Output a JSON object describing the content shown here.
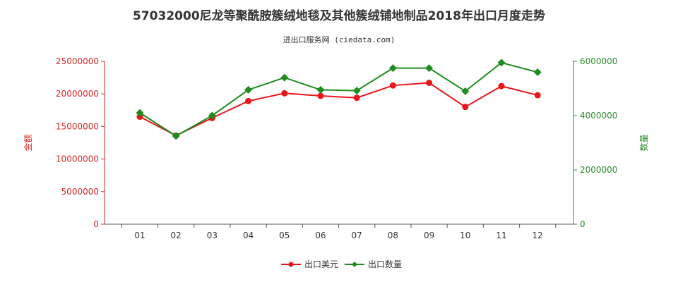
{
  "chart_data": {
    "type": "line",
    "title": "57032000尼龙等聚酰胺簇绒地毯及其他簇绒铺地制品2018年出口月度走势",
    "subtitle": "进出口服务网 (ciedata.com)",
    "categories": [
      "01",
      "02",
      "03",
      "04",
      "05",
      "06",
      "07",
      "08",
      "09",
      "10",
      "11",
      "12"
    ],
    "ylabel_left": "金额",
    "ylabel_right": "数量",
    "ylim_left": [
      0,
      25000000
    ],
    "ylim_right": [
      0,
      6000000
    ],
    "yticks_left": [
      "0",
      "5000000",
      "10000000",
      "15000000",
      "20000000",
      "25000000"
    ],
    "yticks_right": [
      "0",
      "2000000",
      "4000000",
      "6000000"
    ],
    "legend_position": "bottom-center",
    "grid": false,
    "series": [
      {
        "name": "出口美元",
        "axis": "left",
        "color": "#e8161b",
        "values": [
          16500000,
          13600000,
          16300000,
          18900000,
          20100000,
          19700000,
          19400000,
          21300000,
          21700000,
          18000000,
          21200000,
          19800000
        ]
      },
      {
        "name": "出口数量",
        "axis": "right",
        "color": "#1f8c1f",
        "values": [
          4100000,
          3250000,
          4000000,
          4950000,
          5400000,
          4950000,
          4920000,
          5750000,
          5750000,
          4900000,
          5950000,
          5600000
        ]
      }
    ]
  }
}
